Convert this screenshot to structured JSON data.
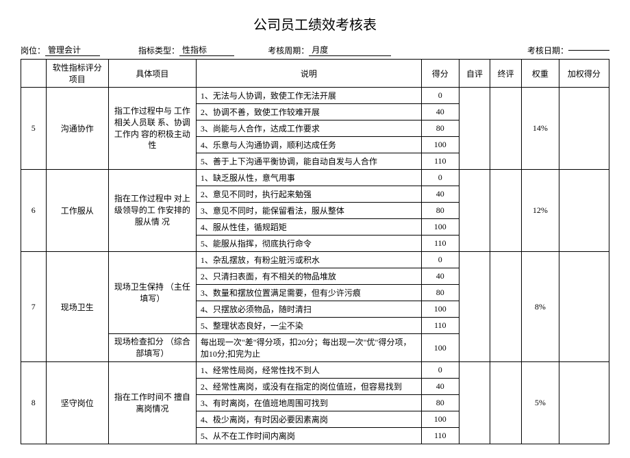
{
  "title": "公司员工绩效考核表",
  "header": {
    "position_label": "岗位：",
    "position_value": "管理会计",
    "indicator_type_label": "指标类型：",
    "indicator_type_value": "性指标",
    "cycle_label": "考核周期：",
    "cycle_value": "月度",
    "date_label": "考核日期："
  },
  "columns": {
    "num": "",
    "item": "软性指标评分项目",
    "project": "具体项目",
    "desc": "说明",
    "score": "得分",
    "self": "自评",
    "final": "终评",
    "weight": "权重",
    "weighted": "加权得分"
  },
  "rows": [
    {
      "num": "5",
      "item": "沟通协作",
      "project": "指工作过程中与 工作相关人员联 系、协调工作内 容的积极主动性",
      "weight": "14%",
      "lines": [
        {
          "desc": "1、无法与人协调，致使工作无法开展",
          "score": "0"
        },
        {
          "desc": "2、协调不善，致使工作较难开展",
          "score": "40"
        },
        {
          "desc": "3、尚能与人合作，达成工作要求",
          "score": "80"
        },
        {
          "desc": "4、乐意与人沟通协调，顺利达成任务",
          "score": "100"
        },
        {
          "desc": "5、善于上下沟通平衡协调，能自动自发与人合作",
          "score": "110"
        }
      ]
    },
    {
      "num": "6",
      "item": "工作服从",
      "project": "指在工作过程中 对上级领导的工 作安排的服从情 况",
      "weight": "12%",
      "lines": [
        {
          "desc": "1、缺乏服从性，意气用事",
          "score": "0"
        },
        {
          "desc": "2、意见不同时，执行起来勉强",
          "score": "40"
        },
        {
          "desc": "3、意见不同时，能保留看法，服从整体",
          "score": "80"
        },
        {
          "desc": "4、服从性佳，循规蹈矩",
          "score": "100"
        },
        {
          "desc": "5、能服从指挥，彻底执行命令",
          "score": "110"
        }
      ]
    },
    {
      "num": "7",
      "item": "现场卫生",
      "project": "现场卫生保持 （主任填写）",
      "weight": "8%",
      "lines": [
        {
          "desc": "1、杂乱摆放，有粉尘脏污或积水",
          "score": "0"
        },
        {
          "desc": "2、只清扫表面，有不相关的物品堆放",
          "score": "40"
        },
        {
          "desc": "3、数量和摆放位置满足需要，但有少许污痕",
          "score": "80"
        },
        {
          "desc": "4、只摆放必须物品，随时清扫",
          "score": "100"
        },
        {
          "desc": "5、整理状态良好，一尘不染",
          "score": "110"
        }
      ],
      "extra_project": "现场检查扣分 （综合部填写）",
      "extra_desc": "每出现一次\"差\"得分项，扣20分；每出现一次\"优\"得分项， 加10分;扣完为止",
      "extra_score": "100"
    },
    {
      "num": "8",
      "item": "坚守岗位",
      "project": "指在工作时间不 擅自离岗情况",
      "weight": "5%",
      "lines": [
        {
          "desc": "1、经常性局岗，经常性找不到人",
          "score": "0"
        },
        {
          "desc": "2、经常性离岗，或没有在指定的岗位值班，但容易找到",
          "score": "40"
        },
        {
          "desc": "3、有时离岗，在值班地周围可找到",
          "score": "80"
        },
        {
          "desc": "4、极少离岗，有时因必要因素离岗",
          "score": "100"
        },
        {
          "desc": "5、从不在工作时间内离岗",
          "score": "110"
        }
      ]
    }
  ]
}
